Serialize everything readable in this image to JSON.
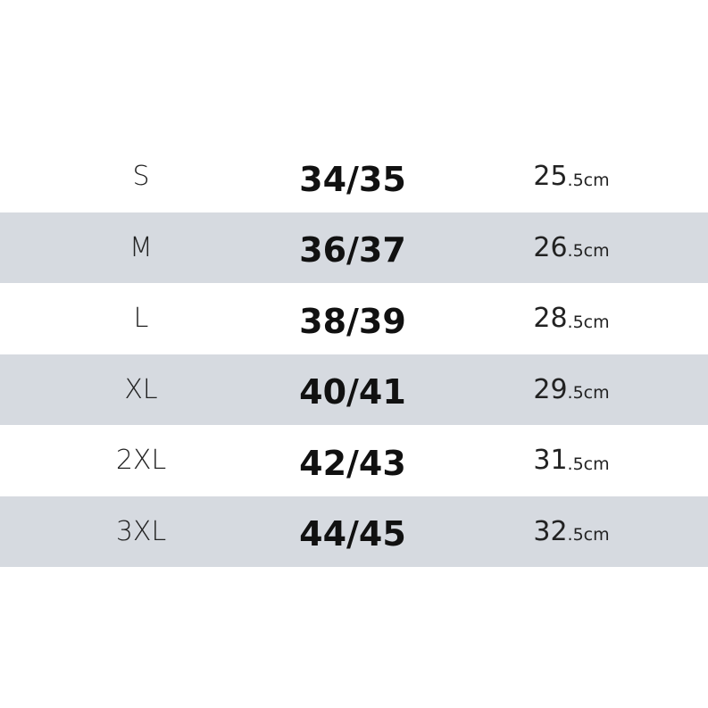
{
  "size_chart": {
    "rows": [
      {
        "size": "S",
        "eu": "34/35",
        "length": "25",
        "unit": ".5cm"
      },
      {
        "size": "M",
        "eu": "36/37",
        "length": "26",
        "unit": ".5cm"
      },
      {
        "size": "L",
        "eu": "38/39",
        "length": "28",
        "unit": ".5cm"
      },
      {
        "size": "XL",
        "eu": "40/41",
        "length": "29",
        "unit": ".5cm"
      },
      {
        "size": "2XL",
        "eu": "42/43",
        "length": "31",
        "unit": ".5cm"
      },
      {
        "size": "3XL",
        "eu": "44/45",
        "length": "32",
        "unit": ".5cm"
      }
    ],
    "colors": {
      "shaded_row": "#d6dae0",
      "plain_row": "#ffffff"
    }
  }
}
